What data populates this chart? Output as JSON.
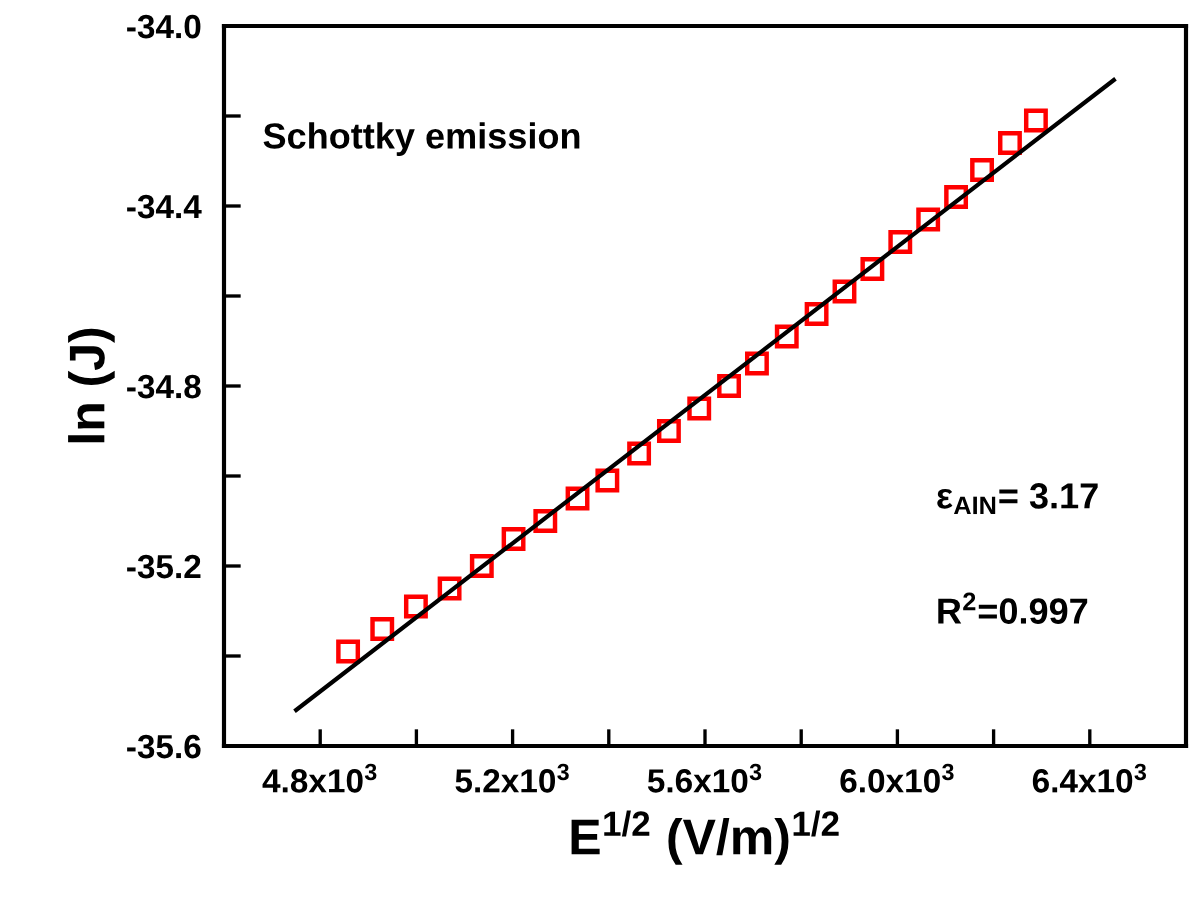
{
  "chart_data": {
    "type": "scatter",
    "xlabel": "E$^{1/2}$ (V/m)$^{1/2}$",
    "ylabel": "ln (J)",
    "annotations": [
      "Schottky emission",
      "ε$_{AIN}$= 3.17",
      "R$^{2}$=0.997"
    ],
    "xlim": [
      4600,
      6600
    ],
    "xticks": [
      {
        "value": 4800,
        "label": "4.8x10$^{3}$"
      },
      {
        "value": 5000,
        "label": null
      },
      {
        "value": 5200,
        "label": "5.2x10$^{3}$"
      },
      {
        "value": 5400,
        "label": null
      },
      {
        "value": 5600,
        "label": "5.6x10$^{3}$"
      },
      {
        "value": 5800,
        "label": null
      },
      {
        "value": 6000,
        "label": "6.0x10$^{3}$"
      },
      {
        "value": 6200,
        "label": null
      },
      {
        "value": 6400,
        "label": "6.4x10$^{3}$"
      }
    ],
    "ylim": [
      -35.6,
      -34.0
    ],
    "yticks": [
      {
        "value": -35.6,
        "label": "-35.6"
      },
      {
        "value": -35.4,
        "label": null
      },
      {
        "value": -35.2,
        "label": "-35.2"
      },
      {
        "value": -35.0,
        "label": null
      },
      {
        "value": -34.8,
        "label": "-34.8"
      },
      {
        "value": -34.6,
        "label": null
      },
      {
        "value": -34.4,
        "label": "-34.4"
      },
      {
        "value": -34.2,
        "label": null
      },
      {
        "value": -34.0,
        "label": "-34.0"
      }
    ],
    "series": [
      {
        "marker": "square",
        "color": "#ff0000",
        "x": [
          4858,
          4929,
          4999,
          5069,
          5136,
          5202,
          5268,
          5335,
          5397,
          5463,
          5525,
          5588,
          5650,
          5708,
          5770,
          5832,
          5890,
          5948,
          6006,
          6064,
          6122,
          6176,
          6234,
          6288
        ],
        "values": [
          -35.39,
          -35.34,
          -35.29,
          -35.25,
          -35.2,
          -35.14,
          -35.1,
          -35.05,
          -35.01,
          -34.95,
          -34.9,
          -34.85,
          -34.8,
          -34.75,
          -34.69,
          -34.64,
          -34.59,
          -34.54,
          -34.48,
          -34.43,
          -34.38,
          -34.32,
          -34.26,
          -34.21
        ]
      },
      {
        "type": "line",
        "marker": "none",
        "line_style": "solid",
        "color": "#000000",
        "x": [
          4750,
          6450
        ],
        "values": [
          -35.52,
          -34.12
        ]
      }
    ]
  }
}
